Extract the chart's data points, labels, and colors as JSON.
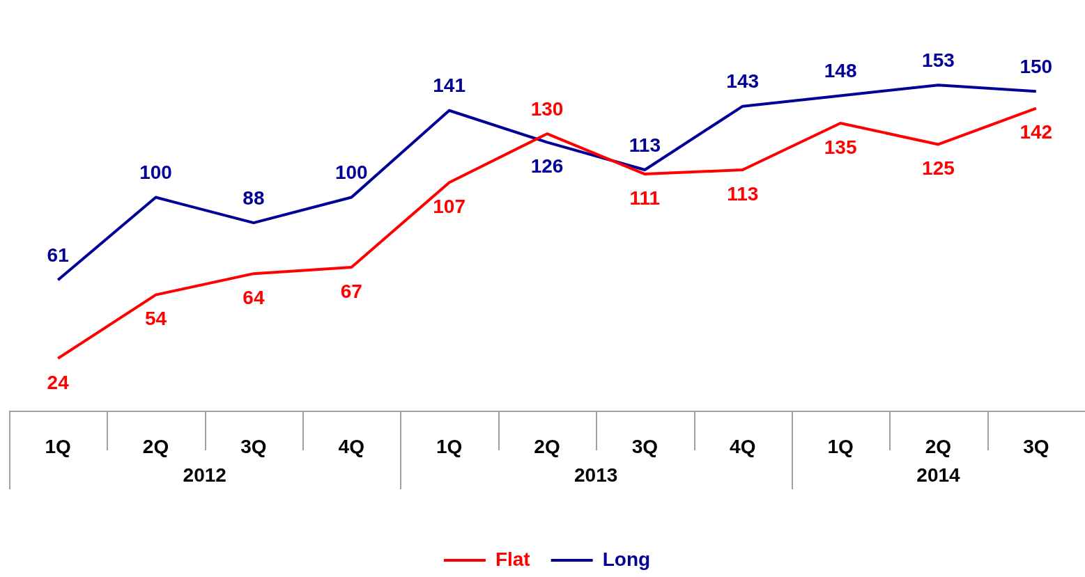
{
  "chart_data": {
    "type": "line",
    "categories": [
      "1Q",
      "2Q",
      "3Q",
      "4Q",
      "1Q",
      "2Q",
      "3Q",
      "4Q",
      "1Q",
      "2Q",
      "3Q"
    ],
    "annotations": [
      "2012",
      "2013",
      "2014"
    ],
    "series": [
      {
        "name": "Flat",
        "color": "#ff0000",
        "values": [
          24,
          54,
          64,
          67,
          107,
          130,
          111,
          113,
          135,
          125,
          142
        ]
      },
      {
        "name": "Long",
        "color": "#000099",
        "values": [
          61,
          100,
          88,
          100,
          141,
          126,
          113,
          143,
          148,
          153,
          150
        ]
      }
    ],
    "data_labels": true,
    "legend": "bottom",
    "marker": "none",
    "tick_labels": "x"
  }
}
